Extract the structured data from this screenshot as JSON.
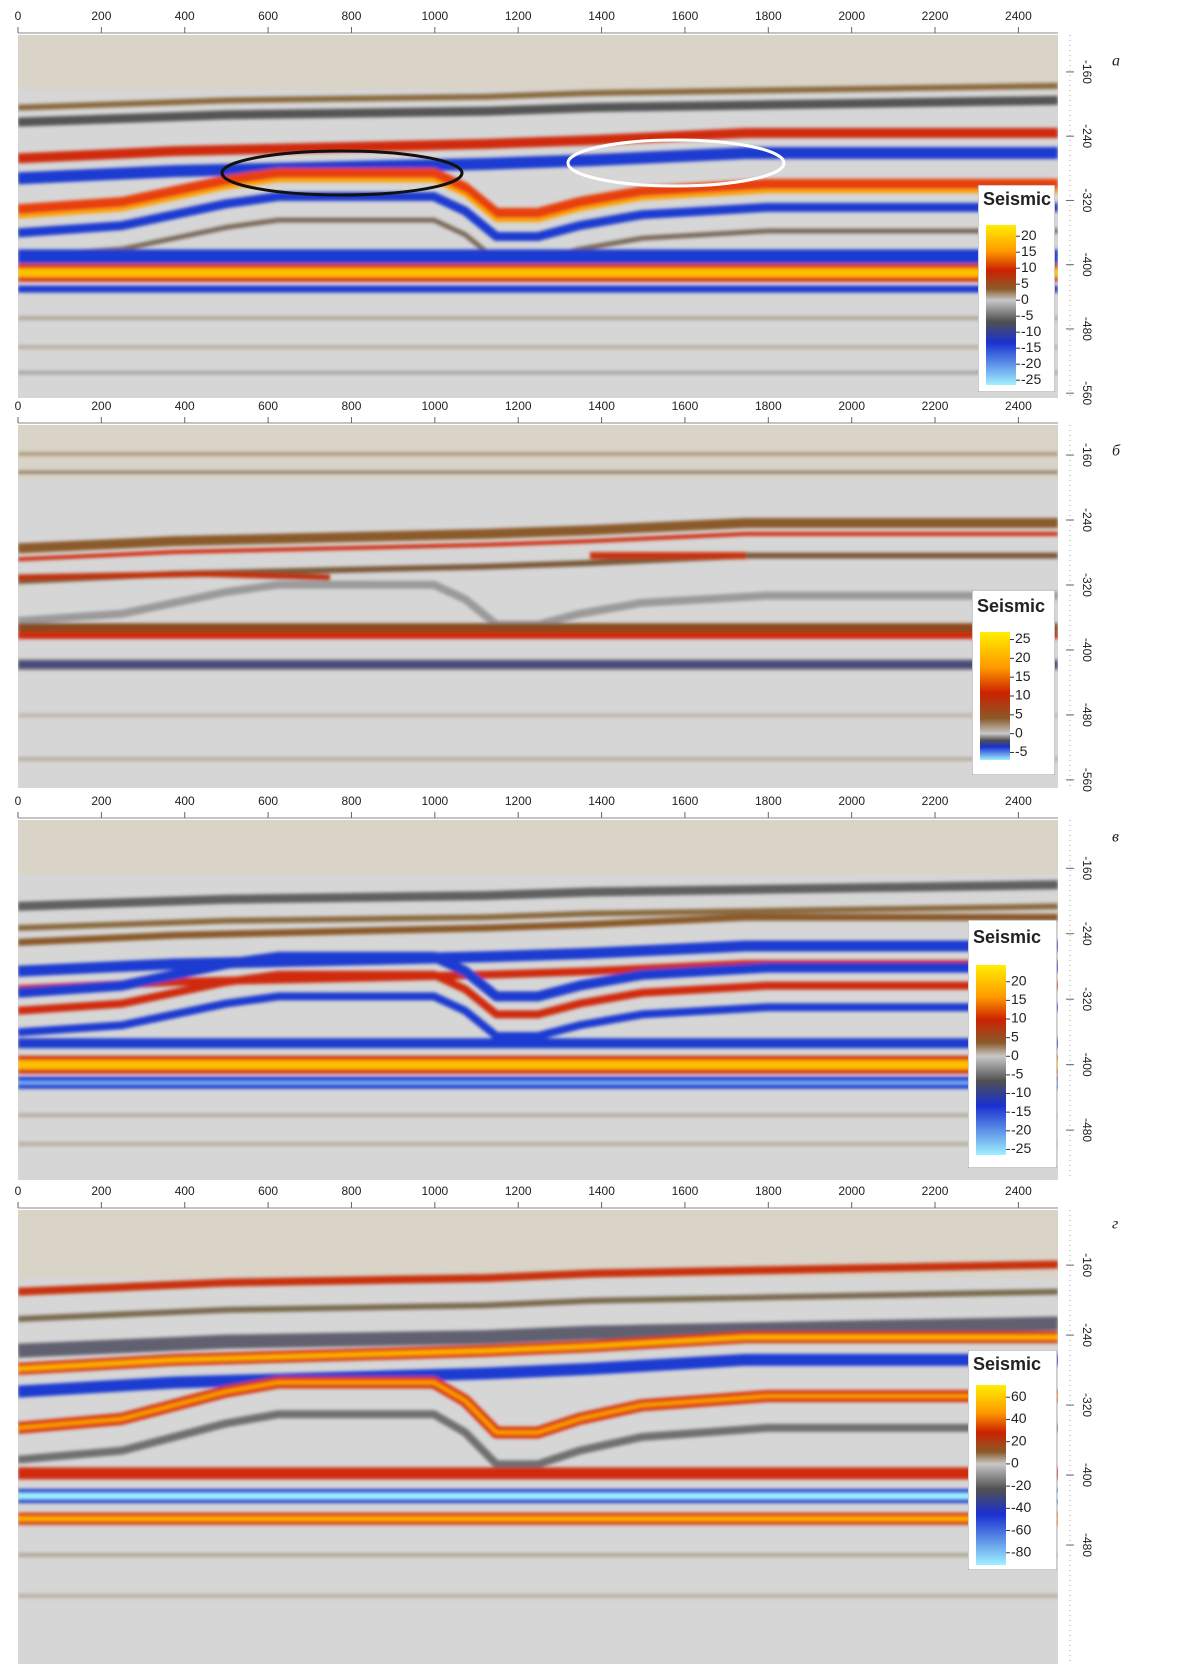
{
  "chart_data": [
    {
      "type": "seismic-section",
      "panel_label": "а",
      "xlim": [
        0,
        2495
      ],
      "xticks": [
        0,
        200,
        400,
        600,
        800,
        1000,
        1200,
        1400,
        1600,
        1800,
        2000,
        2200,
        2400
      ],
      "ylim": [
        -566,
        -114
      ],
      "yticks": [
        -160,
        -240,
        -320,
        -400,
        -480,
        -560
      ],
      "colorbar": {
        "title": "Seismic",
        "lim": [
          -26.5,
          23.5
        ],
        "ticks": [
          20,
          15,
          10,
          5,
          0,
          -5,
          -10,
          -15,
          -20,
          -25
        ]
      }
    },
    {
      "type": "seismic-section",
      "panel_label": "б",
      "xlim": [
        0,
        2495
      ],
      "xticks": [
        0,
        200,
        400,
        600,
        800,
        1000,
        1200,
        1400,
        1600,
        1800,
        2000,
        2200,
        2400
      ],
      "ylim": [
        -570,
        -123
      ],
      "yticks": [
        -160,
        -240,
        -320,
        -400,
        -480,
        -560
      ],
      "colorbar": {
        "title": "Seismic",
        "lim": [
          -7,
          27
        ],
        "ticks": [
          25,
          20,
          15,
          10,
          5,
          0,
          -5
        ]
      }
    },
    {
      "type": "seismic-section",
      "panel_label": "в",
      "xlim": [
        0,
        2495
      ],
      "xticks": [
        0,
        200,
        400,
        600,
        800,
        1000,
        1200,
        1400,
        1600,
        1800,
        2000,
        2200,
        2400
      ],
      "ylim": [
        -541,
        -101
      ],
      "yticks": [
        -160,
        -240,
        -320,
        -400,
        -480
      ],
      "colorbar": {
        "title": "Seismic",
        "lim": [
          -26.5,
          24.5
        ],
        "ticks": [
          20,
          15,
          10,
          5,
          0,
          -5,
          -10,
          -15,
          -20,
          -25
        ]
      }
    },
    {
      "type": "seismic-section",
      "panel_label": "г",
      "xlim": [
        0,
        2495
      ],
      "xticks": [
        0,
        200,
        400,
        600,
        800,
        1000,
        1200,
        1400,
        1600,
        1800,
        2000,
        2200,
        2400
      ],
      "ylim": [
        -616,
        -97
      ],
      "yticks": [
        -160,
        -240,
        -320,
        -400,
        -480
      ],
      "colorbar": {
        "title": "Seismic",
        "lim": [
          -91,
          71
        ],
        "ticks": [
          60,
          40,
          20,
          0,
          -20,
          -40,
          -60,
          -80
        ]
      }
    }
  ]
}
